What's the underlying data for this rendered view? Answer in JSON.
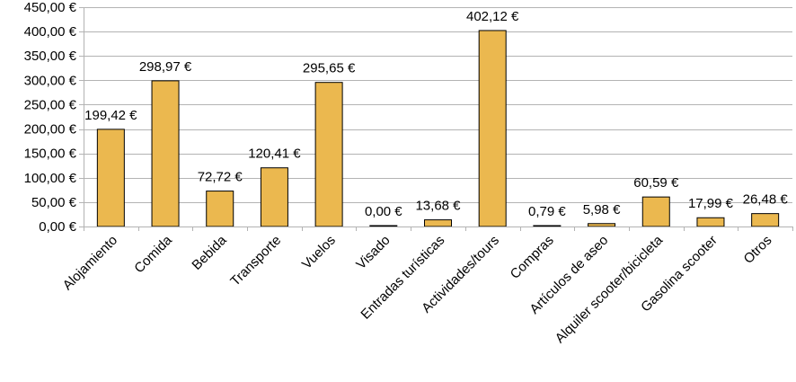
{
  "chart_data": {
    "type": "bar",
    "categories": [
      "Alojamiento",
      "Comida",
      "Bebida",
      "Transporte",
      "Vuelos",
      "Visado",
      "Entradas turísticas",
      "Actividades/tours",
      "Compras",
      "Artículos de aseo",
      "Alquiler scooter/bicicleta",
      "Gasolina scooter",
      "Otros"
    ],
    "values": [
      199.42,
      298.97,
      72.72,
      120.41,
      295.65,
      0.0,
      13.68,
      402.12,
      0.79,
      5.98,
      60.59,
      17.99,
      26.48
    ],
    "data_labels": [
      "199,42 €",
      "298,97 €",
      "72,72 €",
      "120,41 €",
      "295,65 €",
      "0,00 €",
      "13,68 €",
      "402,12 €",
      "0,79 €",
      "5,98 €",
      "60,59 €",
      "17,99 €",
      "26,48 €"
    ],
    "y_ticks": [
      0,
      50,
      100,
      150,
      200,
      250,
      300,
      350,
      400,
      450
    ],
    "y_tick_labels": [
      "0,00 €",
      "50,00 €",
      "100,00 €",
      "150,00 €",
      "200,00 €",
      "250,00 €",
      "300,00 €",
      "350,00 €",
      "400,00 €",
      "450,00 €"
    ],
    "ylim": [
      0,
      450
    ],
    "grid": true,
    "legend": "none",
    "title": "",
    "xlabel": "",
    "ylabel": "",
    "bar_color": "#EBB84F"
  }
}
